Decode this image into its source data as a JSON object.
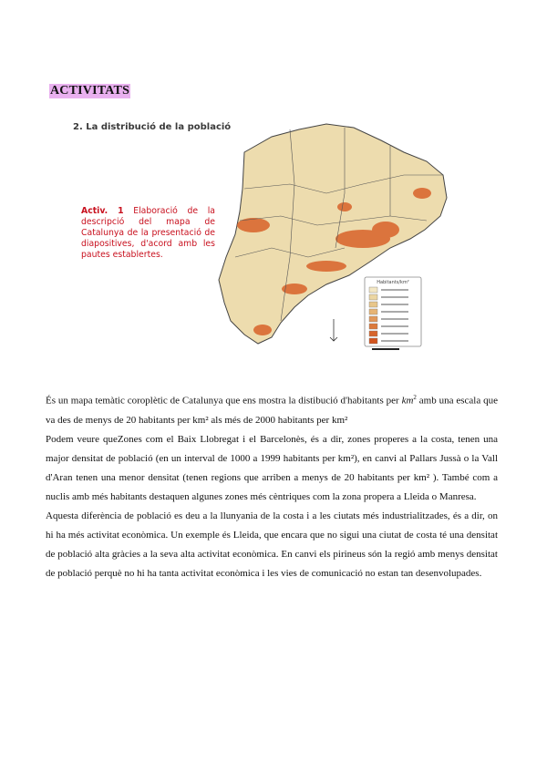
{
  "heading": "ACTIVITATS",
  "figure": {
    "subtitle": "2. La distribució de la població",
    "activity_label": "Activ. 1",
    "activity_text": " Elaboració de la descripció del mapa de Catalunya de la presentació de diapositives, d'acord amb les pautes establertes.",
    "legend_title": "Habitants/km²",
    "legend_colors": [
      "#f3e7c4",
      "#ecd6a2",
      "#e8c68a",
      "#e7b475",
      "#e2985a",
      "#dc7a3c",
      "#d7642c",
      "#d2541e"
    ],
    "map_colors": {
      "land": "#eddcae",
      "high_density": "#d9622a",
      "border": "#444444"
    }
  },
  "body": {
    "p1_before": "És un mapa temàtic coroplètic de Catalunya que ens mostra la distibució d'habitants per ",
    "p1_unit": "km",
    "p1_exp": "2",
    "p1_after": " amb una escala que va des de menys de 20 habitants per km² als més de 2000 habitants per km²",
    "p2": "Podem veure queZones com el Baix Llobregat i el Barcelonès, és a dir, zones properes a la costa, tenen una major densitat de població (en un interval de 1000 a 1999 habitants per km²), en canvi al Pallars Jussà o la Vall d'Aran tenen una menor densitat (tenen regions que arriben a menys de 20 habitants per km² ). També com a nuclis amb més habitants destaquen algunes zones més cèntriques com la zona propera a Lleida o Manresa.",
    "p3": "Aquesta diferència de població es deu a la llunyania de la costa i a les ciutats més industrialitzades, és a dir, on hi ha més activitat econòmica. Un exemple és Lleida, que encara que no sigui una ciutat de costa té una densitat de població alta gràcies a la seva alta activitat econòmica. En canvi els pirineus són la regió amb menys densitat de població perquè no hi ha tanta activitat econòmica i les vies de comunicació no estan tan desenvolupades."
  }
}
